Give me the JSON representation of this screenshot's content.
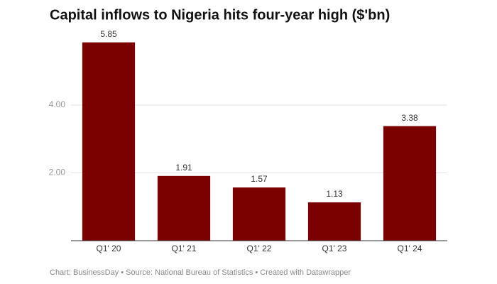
{
  "chart_data": {
    "type": "bar",
    "title": "Capital inflows to Nigeria hits four-year high ($'bn)",
    "categories": [
      "Q1' 20",
      "Q1' 21",
      "Q1' 22",
      "Q1' 23",
      "Q1' 24"
    ],
    "values": [
      5.85,
      1.91,
      1.57,
      1.13,
      3.38
    ],
    "value_labels": [
      "5.85",
      "1.91",
      "1.57",
      "1.13",
      "3.38"
    ],
    "color": "#7b0000",
    "ylim": [
      0,
      6
    ],
    "yticks": [
      {
        "value": 2,
        "label": "2.00"
      },
      {
        "value": 4,
        "label": "4.00"
      }
    ],
    "grid": true,
    "footer": "Chart: BusinessDay • Source: National Bureau of Statistics • Created with Datawrapper"
  }
}
